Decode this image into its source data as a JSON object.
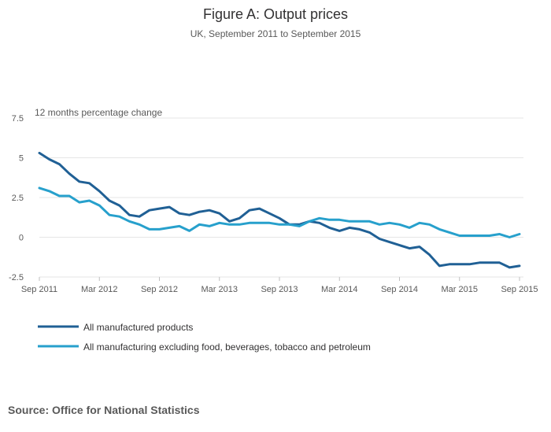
{
  "chart_data": {
    "type": "line",
    "title": "Figure A: Output prices",
    "subtitle": "UK, September 2011 to September 2015",
    "ylabel": "12 months percentage change",
    "ylim": [
      -2.5,
      7.5
    ],
    "y_ticks": [
      "7.5",
      "5",
      "2.5",
      "0",
      "-2.5"
    ],
    "y_tick_values": [
      7.5,
      5,
      2.5,
      0,
      -2.5
    ],
    "x_tick_labels": [
      "Sep 2011",
      "Mar 2012",
      "Sep 2012",
      "Mar 2013",
      "Sep 2013",
      "Mar 2014",
      "Sep 2014",
      "Mar 2015",
      "Sep 2015"
    ],
    "x_tick_months": [
      0,
      6,
      12,
      18,
      24,
      30,
      36,
      42,
      48
    ],
    "x_start": "Sep 2011",
    "grid": true,
    "legend_position": "bottom-left",
    "series": [
      {
        "name": "All manufactured products",
        "color": "#206095",
        "values": [
          5.3,
          4.9,
          4.6,
          4.0,
          3.5,
          3.4,
          2.9,
          2.3,
          2.0,
          1.4,
          1.3,
          1.7,
          1.8,
          1.9,
          1.5,
          1.4,
          1.6,
          1.7,
          1.5,
          1.0,
          1.2,
          1.7,
          1.8,
          1.5,
          1.2,
          0.8,
          0.8,
          1.0,
          0.9,
          0.6,
          0.4,
          0.6,
          0.5,
          0.3,
          -0.1,
          -0.3,
          -0.5,
          -0.7,
          -0.6,
          -1.1,
          -1.8,
          -1.7,
          -1.7,
          -1.7,
          -1.6,
          -1.6,
          -1.6,
          -1.9,
          -1.8
        ]
      },
      {
        "name": "All manufacturing excluding food, beverages, tobacco and petroleum",
        "color": "#27a0cc",
        "values": [
          3.1,
          2.9,
          2.6,
          2.6,
          2.2,
          2.3,
          2.0,
          1.4,
          1.3,
          1.0,
          0.8,
          0.5,
          0.5,
          0.6,
          0.7,
          0.4,
          0.8,
          0.7,
          0.9,
          0.8,
          0.8,
          0.9,
          0.9,
          0.9,
          0.8,
          0.8,
          0.7,
          1.0,
          1.2,
          1.1,
          1.1,
          1.0,
          1.0,
          1.0,
          0.8,
          0.9,
          0.8,
          0.6,
          0.9,
          0.8,
          0.5,
          0.3,
          0.1,
          0.1,
          0.1,
          0.1,
          0.2,
          0.0,
          0.2
        ]
      }
    ]
  },
  "source": "Source: Office for National Statistics"
}
